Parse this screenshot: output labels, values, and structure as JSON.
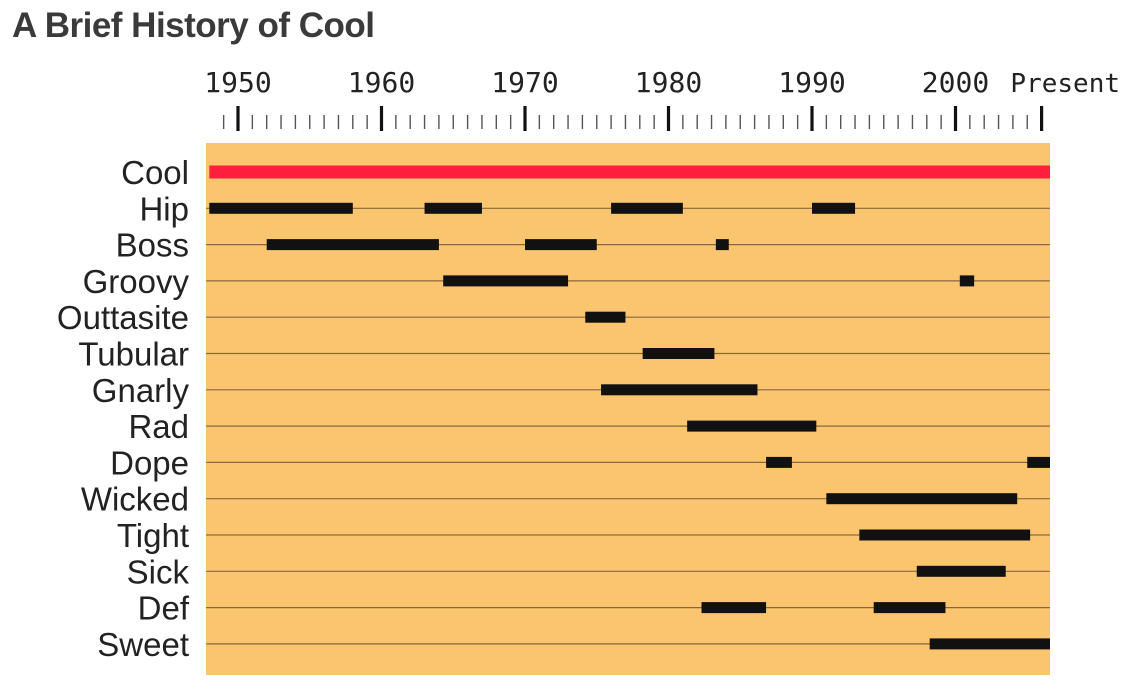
{
  "chart_data": {
    "type": "gantt",
    "title": "A Brief History of Cool",
    "x_ticks": [
      "1950",
      "1960",
      "1970",
      "1980",
      "1990",
      "2000",
      "Present"
    ],
    "xlim": [
      1950,
      2006
    ],
    "grid": true,
    "colors": {
      "background": "#fbc46e",
      "bar": "#111111",
      "highlight": "#ff1f3d",
      "row_line": "#8a6a3c"
    },
    "rows": [
      {
        "label": "Cool",
        "highlight": true,
        "periods": [
          [
            1948,
            2008
          ]
        ]
      },
      {
        "label": "Hip",
        "periods": [
          [
            1948,
            1958
          ],
          [
            1963,
            1967
          ],
          [
            1976,
            1981
          ],
          [
            1990,
            1993
          ]
        ]
      },
      {
        "label": "Boss",
        "periods": [
          [
            1952,
            1964
          ],
          [
            1970,
            1975
          ],
          [
            1983.3,
            1984.2
          ]
        ]
      },
      {
        "label": "Groovy",
        "periods": [
          [
            1964.3,
            1973
          ],
          [
            2000.3,
            2001.3
          ]
        ]
      },
      {
        "label": "Outtasite",
        "periods": [
          [
            1974.2,
            1977
          ]
        ]
      },
      {
        "label": "Tubular",
        "periods": [
          [
            1978.2,
            1983.2
          ]
        ]
      },
      {
        "label": "Gnarly",
        "periods": [
          [
            1975.3,
            1986.2
          ]
        ]
      },
      {
        "label": "Rad",
        "periods": [
          [
            1981.3,
            1990.3
          ]
        ]
      },
      {
        "label": "Dope",
        "periods": [
          [
            1986.8,
            1988.6
          ],
          [
            2005,
            2008
          ]
        ]
      },
      {
        "label": "Wicked",
        "periods": [
          [
            1991,
            2004.3
          ]
        ]
      },
      {
        "label": "Tight",
        "periods": [
          [
            1993.3,
            2005.2
          ]
        ]
      },
      {
        "label": "Sick",
        "periods": [
          [
            1997.3,
            2003.5
          ]
        ]
      },
      {
        "label": "Def",
        "periods": [
          [
            1982.3,
            1986.8
          ],
          [
            1994.3,
            1999.3
          ]
        ]
      },
      {
        "label": "Sweet",
        "periods": [
          [
            1998.2,
            2008
          ]
        ]
      }
    ]
  }
}
